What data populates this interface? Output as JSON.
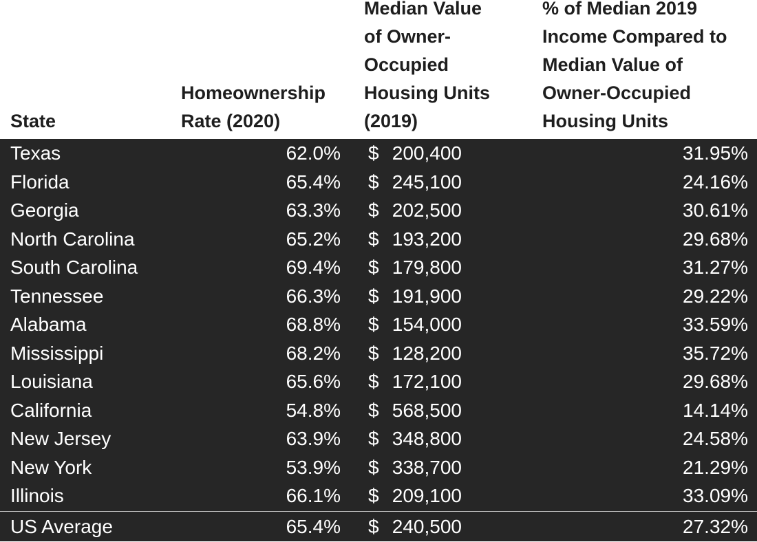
{
  "table": {
    "headers": {
      "state": [
        "State"
      ],
      "rate": [
        "Homeownership",
        "Rate (2020)"
      ],
      "value": [
        "Median Value",
        "of Owner-",
        "Occupied",
        "Housing Units",
        "(2019)"
      ],
      "pct": [
        "% of Median 2019",
        "Income Compared to",
        "Median Value of",
        "Owner-Occupied",
        "Housing Units"
      ]
    },
    "currency_symbol": "$",
    "rows": [
      {
        "state": "Texas",
        "rate": "62.0%",
        "value": "200,400",
        "pct": "31.95%"
      },
      {
        "state": "Florida",
        "rate": "65.4%",
        "value": "245,100",
        "pct": "24.16%"
      },
      {
        "state": "Georgia",
        "rate": "63.3%",
        "value": "202,500",
        "pct": "30.61%"
      },
      {
        "state": "North Carolina",
        "rate": "65.2%",
        "value": "193,200",
        "pct": "29.68%"
      },
      {
        "state": "South Carolina",
        "rate": "69.4%",
        "value": "179,800",
        "pct": "31.27%"
      },
      {
        "state": "Tennessee",
        "rate": "66.3%",
        "value": "191,900",
        "pct": "29.22%"
      },
      {
        "state": "Alabama",
        "rate": "68.8%",
        "value": "154,000",
        "pct": "33.59%"
      },
      {
        "state": "Mississippi",
        "rate": "68.2%",
        "value": "128,200",
        "pct": "35.72%"
      },
      {
        "state": "Louisiana",
        "rate": "65.6%",
        "value": "172,100",
        "pct": "29.68%"
      },
      {
        "state": "California",
        "rate": "54.8%",
        "value": "568,500",
        "pct": "14.14%"
      },
      {
        "state": "New Jersey",
        "rate": "63.9%",
        "value": "348,800",
        "pct": "24.58%"
      },
      {
        "state": "New York",
        "rate": "53.9%",
        "value": "338,700",
        "pct": "21.29%"
      },
      {
        "state": "Illinois",
        "rate": "66.1%",
        "value": "209,100",
        "pct": "33.09%"
      }
    ],
    "average": {
      "state": "US Average",
      "rate": "65.4%",
      "value": "240,500",
      "pct": "27.32%"
    }
  },
  "colors": {
    "header_background": "#ffffff",
    "header_text": "#1e1e1e",
    "body_background": "#262626",
    "body_text": "#ffffff",
    "divider": "#c8c8c8"
  }
}
